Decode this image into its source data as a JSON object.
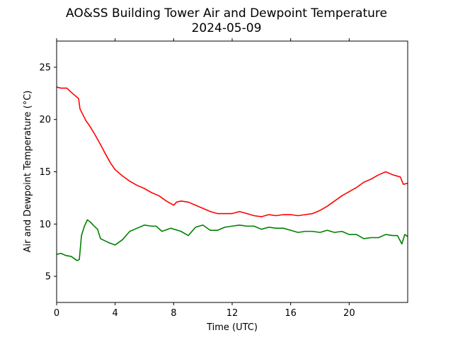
{
  "chart_data": {
    "type": "line",
    "title": "AO&SS Building Tower Air and Dewpoint Temperature",
    "subtitle": "2024-05-09",
    "xlabel": "Time (UTC)",
    "ylabel": "Air and Dewpoint Temperature (°C)",
    "xlim": [
      0,
      24
    ],
    "ylim": [
      2.5,
      27.5
    ],
    "xticks": [
      0,
      4,
      8,
      12,
      16,
      20
    ],
    "yticks": [
      5,
      10,
      15,
      20,
      25
    ],
    "grid": false,
    "legend": "none",
    "series": [
      {
        "color": "#ff0000",
        "x": [
          0,
          0.3,
          0.7,
          1.0,
          1.5,
          1.6,
          2.0,
          2.3,
          2.6,
          3.0,
          3.3,
          3.7,
          4.0,
          4.5,
          5.0,
          5.5,
          6.0,
          6.5,
          7.0,
          7.5,
          8.0,
          8.2,
          8.5,
          9.0,
          9.5,
          10.0,
          10.5,
          11.0,
          11.5,
          12.0,
          12.5,
          13.0,
          13.5,
          14.0,
          14.5,
          15.0,
          15.5,
          16.0,
          16.5,
          17.0,
          17.5,
          18.0,
          18.5,
          19.0,
          19.5,
          20.0,
          20.5,
          21.0,
          21.5,
          22.0,
          22.5,
          23.0,
          23.5,
          23.7,
          24.0
        ],
        "y": [
          23.1,
          23.0,
          23.0,
          22.6,
          22.0,
          21.0,
          19.9,
          19.3,
          18.6,
          17.6,
          16.8,
          15.8,
          15.2,
          14.6,
          14.1,
          13.7,
          13.4,
          13.0,
          12.7,
          12.2,
          11.8,
          12.1,
          12.2,
          12.1,
          11.8,
          11.5,
          11.2,
          11.0,
          11.0,
          11.0,
          11.2,
          11.0,
          10.8,
          10.7,
          10.9,
          10.8,
          10.9,
          10.9,
          10.8,
          10.9,
          11.0,
          11.3,
          11.7,
          12.2,
          12.7,
          13.1,
          13.5,
          14.0,
          14.3,
          14.7,
          15.0,
          14.7,
          14.5,
          13.8,
          13.9
        ]
      },
      {
        "color": "#008000",
        "x": [
          0,
          0.3,
          0.6,
          1.0,
          1.4,
          1.55,
          1.7,
          1.9,
          2.1,
          2.3,
          2.5,
          2.8,
          3.0,
          3.3,
          3.6,
          4.0,
          4.5,
          5.0,
          5.5,
          6.0,
          6.5,
          6.8,
          7.2,
          7.8,
          8.5,
          9.0,
          9.5,
          10.0,
          10.5,
          11.0,
          11.5,
          12.0,
          12.5,
          13.0,
          13.5,
          14.0,
          14.5,
          15.0,
          15.5,
          16.0,
          16.5,
          17.0,
          17.5,
          18.0,
          18.5,
          19.0,
          19.5,
          20.0,
          20.5,
          21.0,
          21.5,
          22.0,
          22.5,
          23.0,
          23.3,
          23.6,
          23.8,
          24.0
        ],
        "y": [
          7.1,
          7.2,
          7.0,
          6.9,
          6.5,
          6.6,
          8.9,
          9.8,
          10.4,
          10.2,
          9.9,
          9.5,
          8.6,
          8.4,
          8.2,
          8.0,
          8.5,
          9.3,
          9.6,
          9.9,
          9.8,
          9.8,
          9.3,
          9.6,
          9.3,
          8.9,
          9.7,
          9.9,
          9.4,
          9.4,
          9.7,
          9.8,
          9.9,
          9.8,
          9.8,
          9.5,
          9.7,
          9.6,
          9.6,
          9.4,
          9.2,
          9.3,
          9.3,
          9.2,
          9.4,
          9.2,
          9.3,
          9.0,
          9.0,
          8.6,
          8.7,
          8.7,
          9.0,
          8.9,
          8.9,
          8.1,
          9.0,
          8.8
        ]
      }
    ]
  }
}
